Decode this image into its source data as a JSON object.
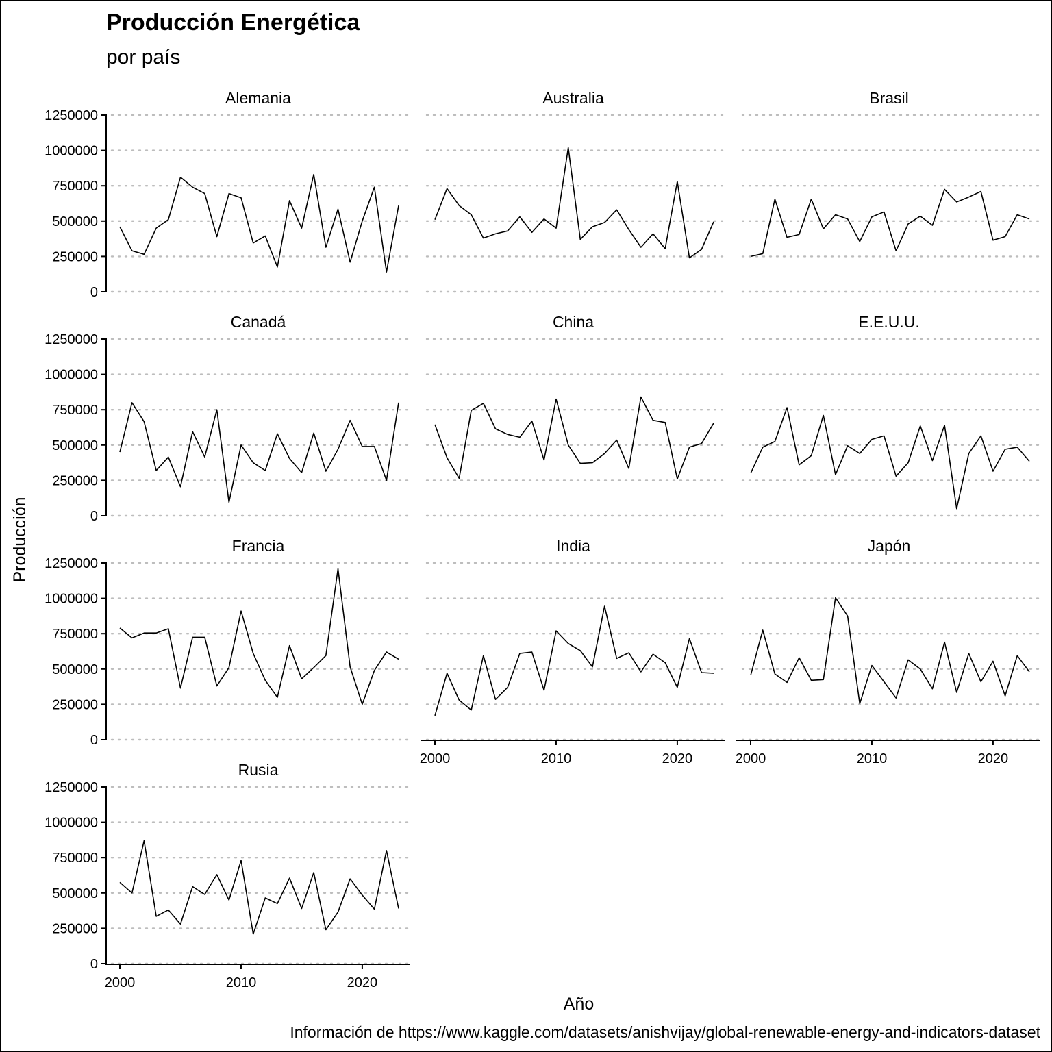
{
  "chart_data": {
    "type": "line",
    "title": "Producción Energética",
    "subtitle": "por país",
    "xlabel": "Año",
    "ylabel": "Producción",
    "caption": "Información de https://www.kaggle.com/datasets/anishvijay/global-renewable-energy-and-indicators-dataset",
    "xlim": [
      2000,
      2023
    ],
    "ylim": [
      0,
      1250000
    ],
    "x_ticks": [
      "2000",
      "2010",
      "2020"
    ],
    "y_ticks": [
      "0",
      "250000",
      "500000",
      "750000",
      "1000000",
      "1250000"
    ],
    "grid": "horizontal dotted",
    "facets": "wrap, 3 columns, shared axes",
    "x": [
      2000,
      2001,
      2002,
      2003,
      2004,
      2005,
      2006,
      2007,
      2008,
      2009,
      2010,
      2011,
      2012,
      2013,
      2014,
      2015,
      2016,
      2017,
      2018,
      2019,
      2020,
      2021,
      2022,
      2023
    ],
    "series": [
      {
        "name": "Alemania",
        "values": [
          460000,
          290000,
          265000,
          450000,
          510000,
          810000,
          740000,
          695000,
          390000,
          695000,
          665000,
          345000,
          395000,
          175000,
          645000,
          450000,
          830000,
          315000,
          585000,
          210000,
          500000,
          740000,
          140000,
          610000
        ]
      },
      {
        "name": "Australia",
        "values": [
          510000,
          730000,
          610000,
          545000,
          380000,
          410000,
          430000,
          530000,
          420000,
          515000,
          450000,
          1020000,
          370000,
          460000,
          490000,
          580000,
          440000,
          315000,
          410000,
          305000,
          780000,
          240000,
          300000,
          495000
        ]
      },
      {
        "name": "Brasil",
        "values": [
          250000,
          270000,
          655000,
          385000,
          405000,
          655000,
          445000,
          545000,
          515000,
          355000,
          530000,
          565000,
          290000,
          480000,
          535000,
          470000,
          725000,
          635000,
          670000,
          710000,
          365000,
          390000,
          545000,
          515000
        ]
      },
      {
        "name": "Canadá",
        "values": [
          450000,
          800000,
          665000,
          320000,
          415000,
          205000,
          595000,
          415000,
          750000,
          95000,
          500000,
          375000,
          320000,
          580000,
          405000,
          305000,
          585000,
          315000,
          470000,
          675000,
          490000,
          490000,
          250000,
          800000
        ]
      },
      {
        "name": "China",
        "values": [
          645000,
          410000,
          265000,
          745000,
          795000,
          615000,
          575000,
          555000,
          670000,
          395000,
          825000,
          500000,
          370000,
          375000,
          440000,
          535000,
          335000,
          840000,
          675000,
          660000,
          260000,
          485000,
          510000,
          655000
        ]
      },
      {
        "name": "E.E.U.U.",
        "values": [
          300000,
          485000,
          525000,
          765000,
          360000,
          425000,
          710000,
          290000,
          495000,
          440000,
          540000,
          565000,
          280000,
          375000,
          635000,
          390000,
          640000,
          50000,
          440000,
          565000,
          315000,
          470000,
          485000,
          385000
        ]
      },
      {
        "name": "Francia",
        "values": [
          790000,
          720000,
          755000,
          755000,
          785000,
          365000,
          725000,
          725000,
          380000,
          510000,
          910000,
          610000,
          420000,
          300000,
          665000,
          430000,
          510000,
          595000,
          1210000,
          515000,
          250000,
          490000,
          620000,
          570000
        ]
      },
      {
        "name": "India",
        "values": [
          170000,
          470000,
          280000,
          210000,
          595000,
          285000,
          370000,
          610000,
          620000,
          350000,
          770000,
          680000,
          630000,
          515000,
          945000,
          575000,
          615000,
          480000,
          605000,
          545000,
          370000,
          715000,
          475000,
          470000
        ]
      },
      {
        "name": "Japón",
        "values": [
          455000,
          775000,
          465000,
          405000,
          580000,
          420000,
          425000,
          1005000,
          875000,
          255000,
          525000,
          410000,
          295000,
          565000,
          500000,
          360000,
          690000,
          335000,
          610000,
          410000,
          555000,
          310000,
          595000,
          480000
        ]
      },
      {
        "name": "Rusia",
        "values": [
          575000,
          500000,
          870000,
          335000,
          380000,
          280000,
          545000,
          490000,
          630000,
          450000,
          730000,
          210000,
          465000,
          425000,
          605000,
          390000,
          645000,
          240000,
          365000,
          600000,
          485000,
          385000,
          800000,
          390000
        ]
      }
    ]
  }
}
